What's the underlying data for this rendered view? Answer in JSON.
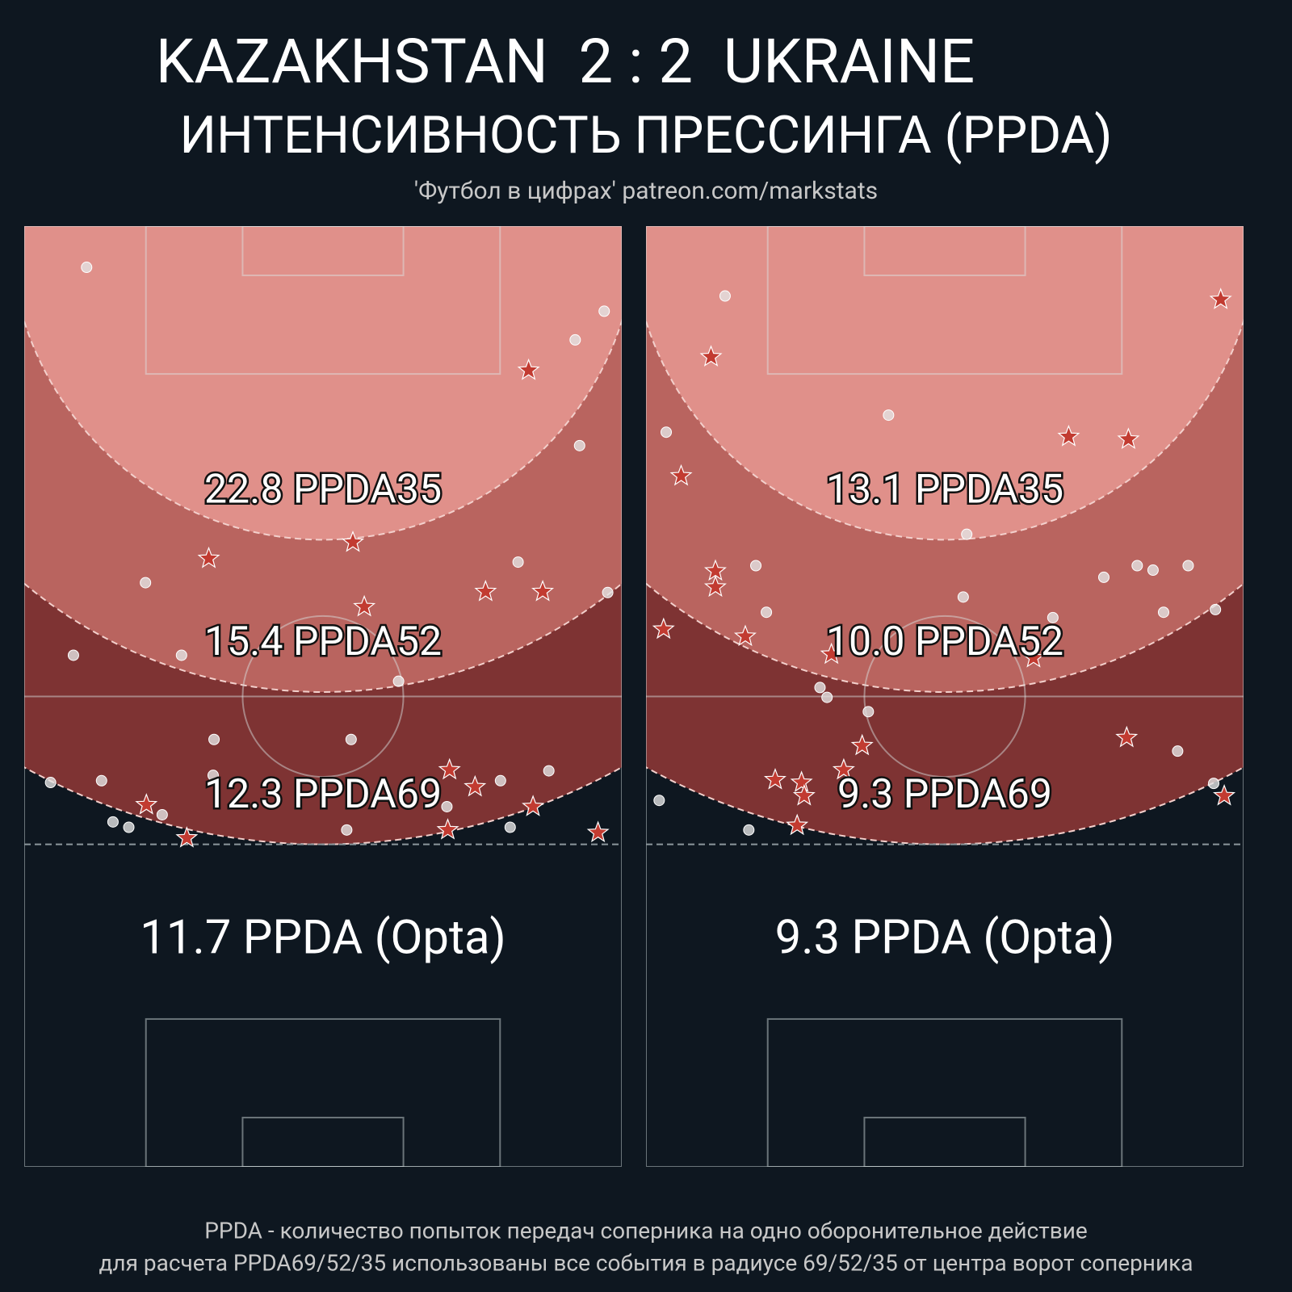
{
  "chart_data": {
    "type": "pressing-pitch",
    "title": "KAZAKHSTAN  2 : 2  UKRAINE",
    "subtitle": "ИНТЕНСИВНОСТЬ ПРЕССИНГА (PPDA)",
    "source": "'Футбол в цифрах' patreon.com/markstats",
    "footer": [
      "PPDA - количество попыток передач соперника на одно оборонительное действие",
      "для расчета PPDA69/52/35 использованы все события в радиусе 69/52/35 от центра ворот соперника"
    ],
    "xlim": [
      0,
      68
    ],
    "ylim": [
      0,
      105
    ],
    "panels": [
      {
        "zones": [
          {
            "radius": 69,
            "value": 12.3,
            "label": "PPDA69",
            "color": "#7e3333"
          },
          {
            "radius": 52,
            "value": 15.4,
            "label": "PPDA52",
            "color": "#b9645f"
          },
          {
            "radius": 35,
            "value": 22.8,
            "label": "PPDA35",
            "color": "#e0908a"
          }
        ],
        "opta": {
          "value": 11.7,
          "label": "PPDA (Opta)"
        },
        "dots": {
          "x": [
            7.1,
            66.0,
            62.7,
            63.2,
            56.2,
            13.8,
            66.4,
            5.6,
            17.9,
            42.6,
            21.6,
            37.2,
            21.5,
            3.0,
            8.8,
            54.2,
            59.7,
            15.7,
            10.1,
            11.9,
            48.1,
            36.7,
            55.3
          ],
          "y": [
            4.6,
            9.5,
            12.7,
            24.5,
            37.5,
            39.8,
            40.9,
            47.9,
            47.9,
            50.8,
            57.3,
            57.3,
            61.3,
            62.1,
            61.9,
            61.9,
            60.8,
            65.7,
            66.5,
            67.1,
            64.8,
            67.4,
            67.1
          ]
        },
        "stars": {
          "x": [
            57.4,
            21.0,
            37.4,
            38.7,
            52.5,
            59.0,
            48.4,
            51.3,
            13.9,
            57.9,
            18.5,
            48.2,
            65.3
          ],
          "y": [
            16.1,
            37.1,
            35.3,
            42.5,
            40.8,
            40.8,
            60.7,
            62.6,
            64.6,
            64.8,
            68.3,
            67.4,
            67.7
          ]
        }
      },
      {
        "zones": [
          {
            "radius": 69,
            "value": 9.3,
            "label": "PPDA69",
            "color": "#7e3333"
          },
          {
            "radius": 52,
            "value": 10.0,
            "label": "PPDA52",
            "value_label": "10.0",
            "color": "#b9645f"
          },
          {
            "radius": 35,
            "value": 13.1,
            "label": "PPDA35",
            "color": "#e0908a"
          }
        ],
        "opta": {
          "value": 9.3,
          "label": "PPDA (Opta)"
        },
        "dots": {
          "x": [
            9.0,
            27.6,
            2.3,
            36.5,
            12.5,
            52.1,
            55.9,
            57.7,
            61.7,
            13.7,
            36.1,
            58.9,
            46.3,
            64.8,
            19.8,
            20.6,
            25.3,
            60.5,
            1.5,
            11.7,
            64.6
          ],
          "y": [
            7.8,
            21.1,
            23.0,
            34.4,
            37.9,
            39.2,
            37.9,
            38.4,
            37.9,
            43.1,
            41.4,
            43.1,
            43.7,
            42.8,
            51.5,
            52.6,
            54.2,
            58.6,
            64.1,
            67.4,
            62.2
          ]
        },
        "stars": {
          "x": [
            65.4,
            7.4,
            4.0,
            48.1,
            54.9,
            7.9,
            7.9,
            2.0,
            11.3,
            21.1,
            44.1,
            24.6,
            22.5,
            54.7,
            14.7,
            17.7,
            18.0,
            17.2,
            65.8
          ],
          "y": [
            8.2,
            14.6,
            27.9,
            23.5,
            23.8,
            38.5,
            40.3,
            45.0,
            45.8,
            47.8,
            48.2,
            58.0,
            60.7,
            57.1,
            61.8,
            62.1,
            63.6,
            66.9,
            63.6
          ]
        }
      }
    ]
  }
}
